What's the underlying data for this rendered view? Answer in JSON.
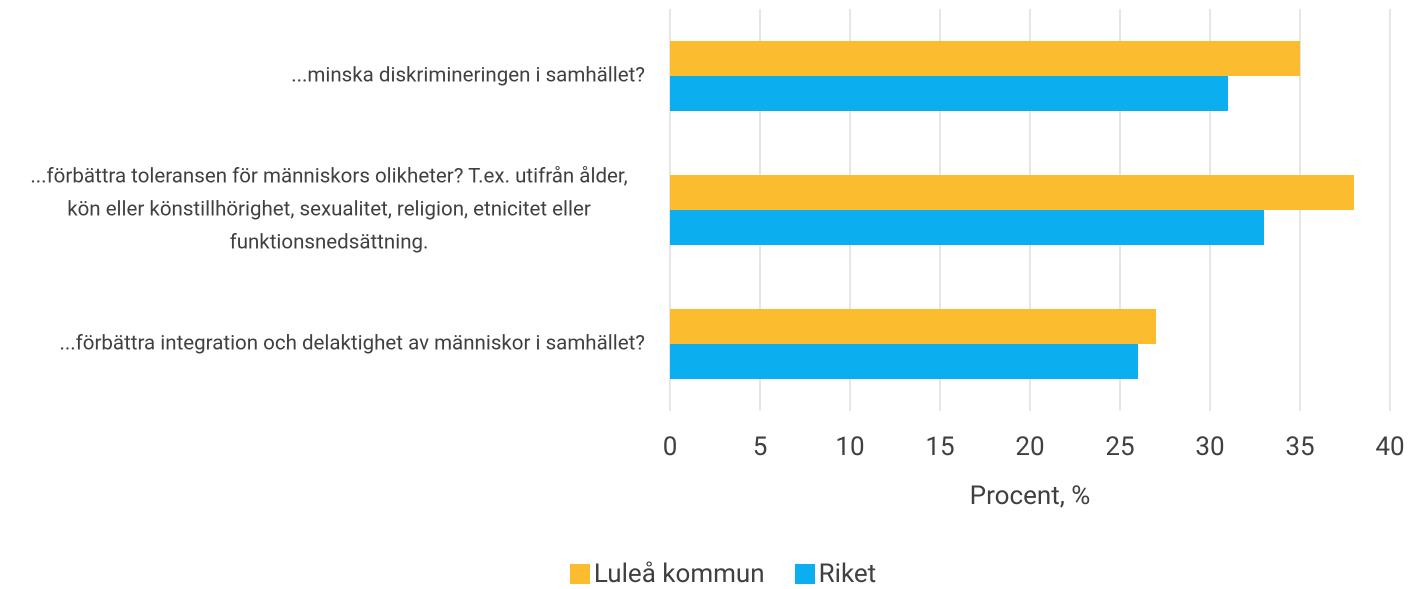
{
  "chart_data": {
    "type": "hbar",
    "xlabel": "Procent, %",
    "categories": [
      "...minska diskrimineringen i samhället?",
      "...förbättra toleransen för människors olikheter? T.ex. utifrån ålder, kön eller könstillhörighet, sexualitet, religion, etnicitet eller funktionsnedsättning.",
      "...förbättra integration och delaktighet av människor i samhället?"
    ],
    "series": [
      {
        "name": "Luleå kommun",
        "color": "#FBBC2F",
        "values": [
          35,
          38,
          27
        ]
      },
      {
        "name": "Riket",
        "color": "#0BAEEE",
        "values": [
          31,
          33,
          26
        ]
      }
    ],
    "xlim": [
      0,
      40
    ],
    "xticks": [
      0,
      5,
      10,
      15,
      20,
      25,
      30,
      35,
      40
    ],
    "grid": true,
    "legend": "bottom"
  }
}
